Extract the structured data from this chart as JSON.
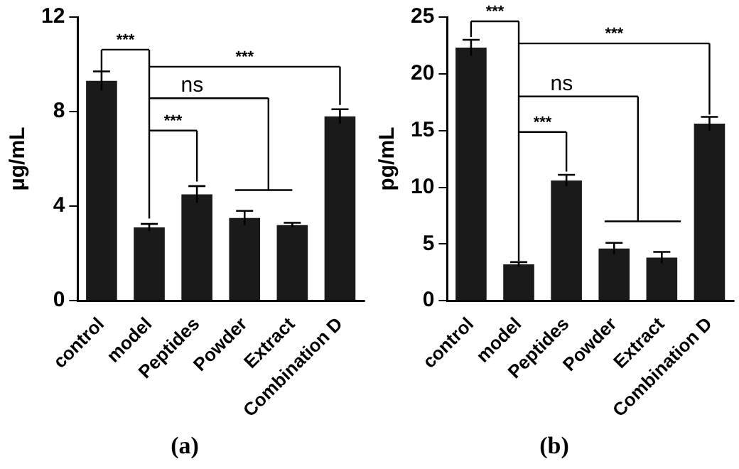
{
  "chart_data": [
    {
      "type": "bar",
      "categories": [
        "control",
        "model",
        "Peptides",
        "Powder",
        "Extract",
        "Combination D"
      ],
      "values": [
        9.3,
        3.1,
        4.5,
        3.5,
        3.2,
        7.8
      ],
      "errors": [
        0.4,
        0.15,
        0.35,
        0.3,
        0.1,
        0.3
      ],
      "color": "#1a1a1a",
      "ylabel": "μg/mL",
      "ylim": [
        0,
        12
      ],
      "yticks": [
        0,
        4,
        8,
        12
      ],
      "annotations": [
        "***",
        "***",
        "ns",
        "***",
        "(a)"
      ]
    },
    {
      "type": "bar",
      "categories": [
        "control",
        "model",
        "Peptides",
        "Powder",
        "Extract",
        "Combination D"
      ],
      "values": [
        22.3,
        3.2,
        10.6,
        4.6,
        3.8,
        15.6
      ],
      "errors": [
        0.7,
        0.2,
        0.5,
        0.5,
        0.5,
        0.6
      ],
      "color": "#1a1a1a",
      "ylabel": "pg/mL",
      "ylim": [
        0,
        25
      ],
      "yticks": [
        0,
        5,
        10,
        15,
        20,
        25
      ],
      "annotations": [
        "***",
        "***",
        "ns",
        "***",
        "(b)"
      ]
    }
  ]
}
